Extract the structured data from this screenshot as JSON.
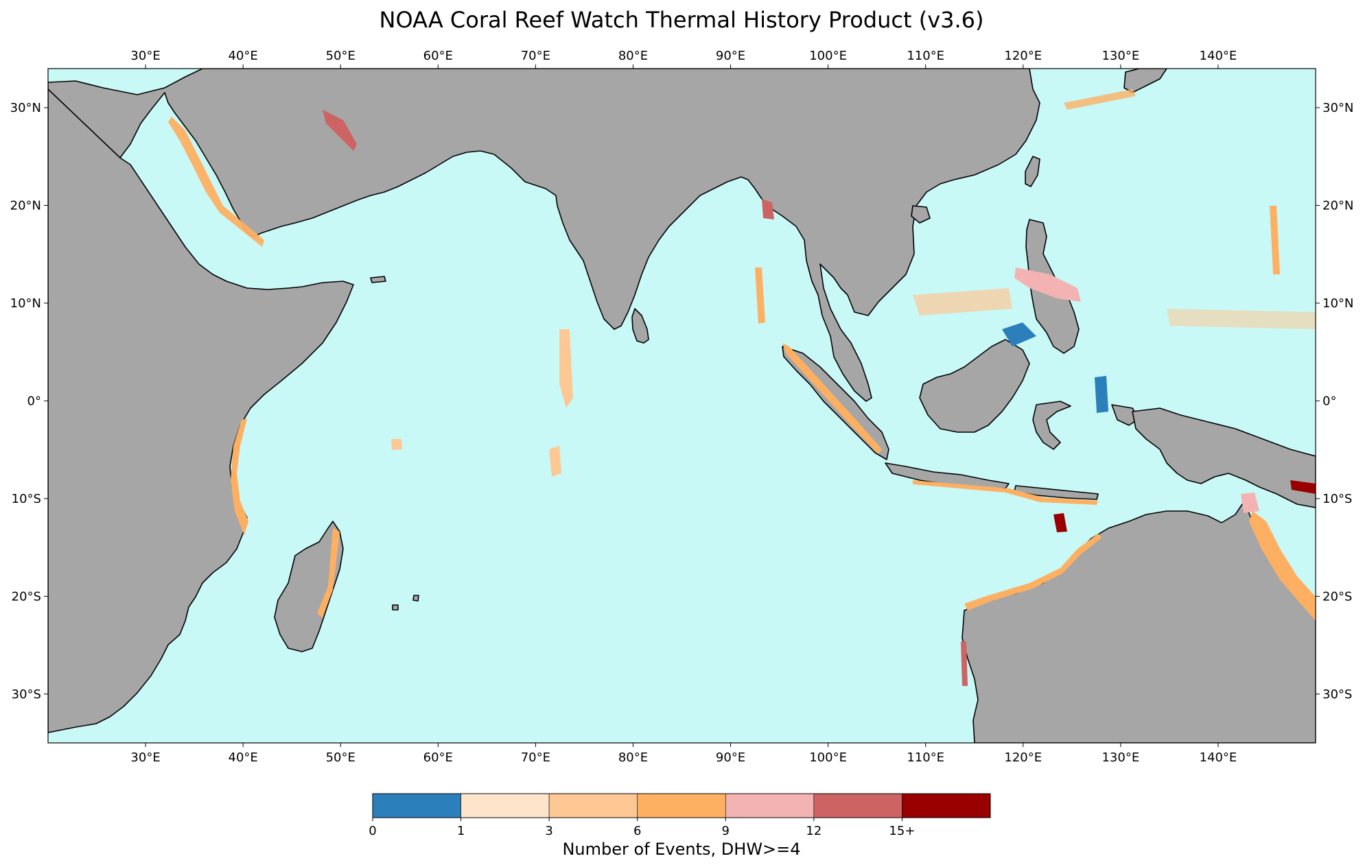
{
  "title": "NOAA Coral Reef Watch Thermal History Product (v3.6)",
  "colors": {
    "ocean": "#c8f9f7",
    "land": "#a6a6a6",
    "coast": "#000000"
  },
  "map": {
    "extent_lon": [
      20,
      150
    ],
    "extent_lat": [
      -35,
      34
    ],
    "lon_ticks": [
      {
        "value": 30,
        "label": "30°E"
      },
      {
        "value": 40,
        "label": "40°E"
      },
      {
        "value": 50,
        "label": "50°E"
      },
      {
        "value": 60,
        "label": "60°E"
      },
      {
        "value": 70,
        "label": "70°E"
      },
      {
        "value": 80,
        "label": "80°E"
      },
      {
        "value": 90,
        "label": "90°E"
      },
      {
        "value": 100,
        "label": "100°E"
      },
      {
        "value": 110,
        "label": "110°E"
      },
      {
        "value": 120,
        "label": "120°E"
      },
      {
        "value": 130,
        "label": "130°E"
      },
      {
        "value": 140,
        "label": "140°E"
      }
    ],
    "lat_ticks": [
      {
        "value": 30,
        "label": "30°N"
      },
      {
        "value": 20,
        "label": "20°N"
      },
      {
        "value": 10,
        "label": "10°N"
      },
      {
        "value": 0,
        "label": "0°"
      },
      {
        "value": -10,
        "label": "10°S"
      },
      {
        "value": -20,
        "label": "20°S"
      },
      {
        "value": -30,
        "label": "30°S"
      }
    ]
  },
  "colorbar": {
    "label": "Number of Events, DHW>=4",
    "bins": [
      {
        "color": "#2b7fba"
      },
      {
        "color": "#ffe4cc"
      },
      {
        "color": "#fec894"
      },
      {
        "color": "#feb062"
      },
      {
        "color": "#f4b3b3"
      },
      {
        "color": "#cd6363"
      },
      {
        "color": "#990000"
      }
    ],
    "ticks": [
      "0",
      "1",
      "3",
      "6",
      "9",
      "12",
      "15+"
    ]
  }
}
